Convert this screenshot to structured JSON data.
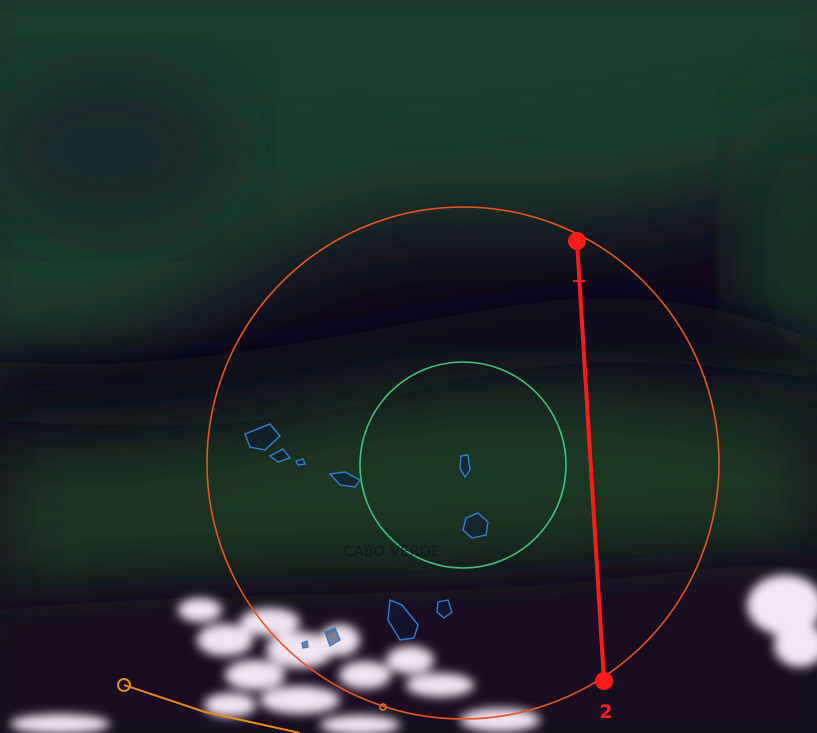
{
  "map": {
    "place_label": "CABO VERDE",
    "secondary_label": "",
    "measure_label": "2"
  },
  "colors": {
    "outer_ring": "#e8561e",
    "inner_ring": "#3fbf7a",
    "measure_line": "#ff1a1a",
    "coastline": "#2f7fd6",
    "track_line": "#e8891a",
    "cloud": "#f2e4f2",
    "background_dark": "#120b1e",
    "airmass_green": "#1c3a26"
  },
  "icons": {
    "measure_endpoint": "red-dot-icon",
    "track_marker": "circle-marker-icon"
  }
}
